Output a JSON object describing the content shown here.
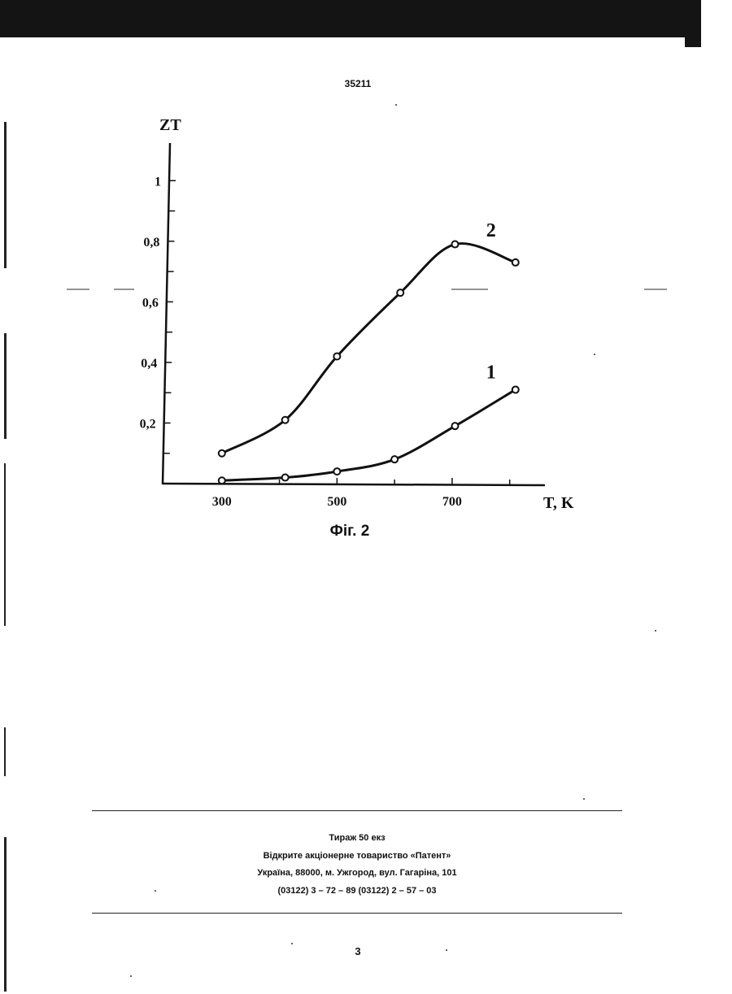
{
  "document": {
    "patent_number": "35211",
    "figure_caption": "Фіг. 2",
    "imprint": {
      "line1": "Тираж 50 екз",
      "line2": "Відкрите акціонерне товариство «Патент»",
      "line3": "Україна, 88000, м. Ужгород, вул. Гагаріна, 101",
      "line4": "(03122) 3 – 72 – 89  (03122) 2 – 57 – 03"
    },
    "page_number": "3"
  },
  "chart_data": {
    "type": "line",
    "title": "",
    "xlabel": "T, K",
    "ylabel": "ZT",
    "xlim": [
      200,
      840
    ],
    "ylim": [
      0,
      1.1
    ],
    "x_ticks": [
      300,
      500,
      700
    ],
    "x_tick_labels": [
      "300",
      "500",
      "700"
    ],
    "y_ticks": [
      0.2,
      0.4,
      0.6,
      0.8,
      1.0
    ],
    "y_tick_labels": [
      "0,2",
      "0,4",
      "0,6",
      "0,8",
      "1"
    ],
    "grid": false,
    "series": [
      {
        "name": "1",
        "x": [
          300,
          410,
          500,
          600,
          705,
          810
        ],
        "y": [
          0.01,
          0.02,
          0.04,
          0.08,
          0.19,
          0.31
        ]
      },
      {
        "name": "2",
        "x": [
          300,
          410,
          500,
          610,
          705,
          810
        ],
        "y": [
          0.1,
          0.21,
          0.42,
          0.63,
          0.79,
          0.73
        ]
      }
    ]
  }
}
